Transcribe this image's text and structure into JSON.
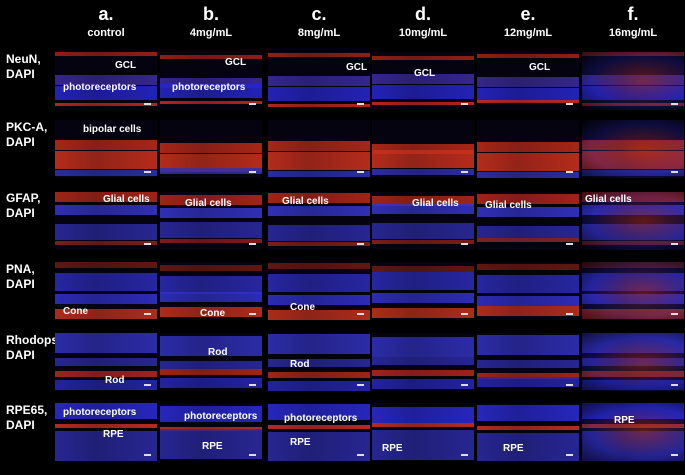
{
  "columns": [
    {
      "letter": "a.",
      "conc": "control"
    },
    {
      "letter": "b.",
      "conc": "4mg/mL"
    },
    {
      "letter": "c.",
      "conc": "8mg/mL"
    },
    {
      "letter": "d.",
      "conc": "10mg/mL"
    },
    {
      "letter": "e.",
      "conc": "12mg/mL"
    },
    {
      "letter": "f.",
      "conc": "16mg/mL"
    }
  ],
  "rows": [
    {
      "label": "NeuN,\nDAPI",
      "panels": [
        [
          "GCL",
          "photoreceptors"
        ],
        [
          "GCL",
          "photoreceptors"
        ],
        [
          "GCL"
        ],
        [
          "GCL"
        ],
        [
          "GCL"
        ],
        []
      ]
    },
    {
      "label": "PKC-A,\nDAPI",
      "panels": [
        [
          "bipolar cells"
        ],
        [],
        [],
        [],
        [],
        []
      ]
    },
    {
      "label": "GFAP,\nDAPI",
      "panels": [
        [
          "Glial cells"
        ],
        [
          "Glial cells"
        ],
        [
          "Glial cells"
        ],
        [
          "Glial cells"
        ],
        [
          "Glial cells"
        ],
        [
          "Glial cells"
        ]
      ]
    },
    {
      "label": "PNA,\nDAPI",
      "panels": [
        [
          "Cone"
        ],
        [
          "Cone"
        ],
        [
          "Cone"
        ],
        [],
        [],
        []
      ]
    },
    {
      "label": "Rhodopsin,\nDAPI",
      "panels": [
        [
          "Rod"
        ],
        [
          "Rod"
        ],
        [
          "Rod"
        ],
        [],
        [],
        []
      ]
    },
    {
      "label": "RPE65,\nDAPI",
      "panels": [
        [
          "photoreceptors",
          "RPE"
        ],
        [
          "photoreceptors",
          "RPE"
        ],
        [
          "photoreceptors",
          "RPE"
        ],
        [
          "RPE"
        ],
        [
          "RPE"
        ],
        [
          "RPE"
        ]
      ]
    }
  ],
  "colors": {
    "red_stain": "#d8321e",
    "blue_stain": "#2a2ad8",
    "background": "#000000"
  }
}
